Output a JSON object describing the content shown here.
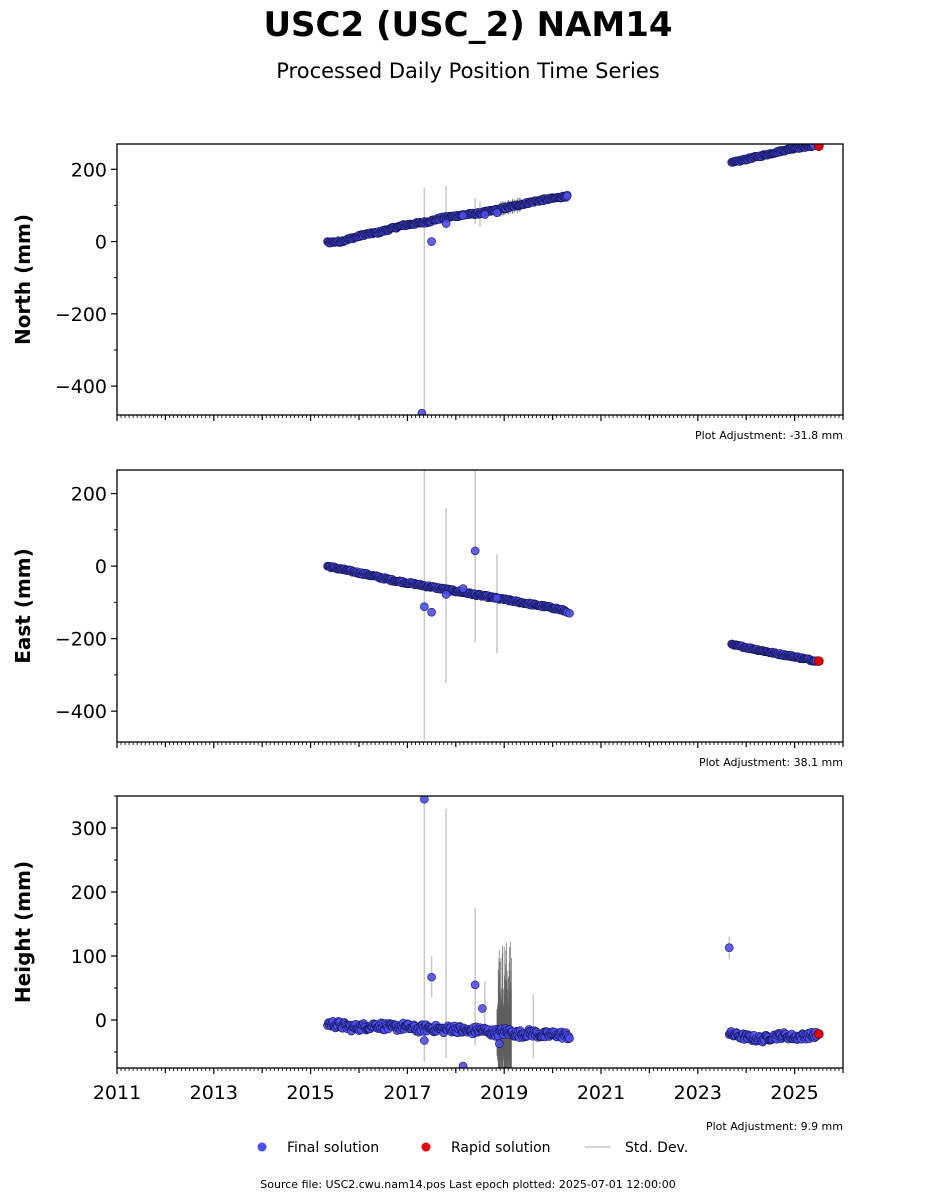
{
  "title": "USC2 (USC_2) NAM14",
  "subtitle": "Processed Daily Position Time Series",
  "source_note": "Source file: USC2.cwu.nam14.pos  Last epoch plotted: 2025-07-01 12:00:00",
  "legend": {
    "final_label": "Final solution",
    "rapid_label": "Rapid solution",
    "std_label": "Std. Dev.",
    "final_color": "#4b4ef0",
    "rapid_color": "#e8000b",
    "std_color": "#c8c8c8"
  },
  "chart_data": {
    "type": "scatter",
    "x_unit": "decimal year",
    "xlim": [
      2011,
      2026
    ],
    "x_ticks": [
      2011,
      2013,
      2015,
      2017,
      2019,
      2021,
      2023,
      2025
    ],
    "x_tick_labels": [
      "2011",
      "2013",
      "2015",
      "2017",
      "2019",
      "2021",
      "2023",
      "2025"
    ],
    "panels": [
      {
        "ylabel": "North (mm)",
        "ylim": [
          -480,
          270
        ],
        "y_ticks": [
          200,
          0,
          -200,
          -400
        ],
        "y_tick_labels": [
          "200",
          "0",
          "−200",
          "−400"
        ],
        "adjustment": "Plot Adjustment: -31.8 mm",
        "segments": [
          {
            "x0": 2015.35,
            "x1": 2020.3,
            "y": [
              -2,
              0,
              10,
              20,
              25,
              35,
              45,
              50,
              55,
              65,
              70,
              75,
              78,
              85,
              92,
              100,
              108,
              115,
              120,
              126
            ],
            "noise": 3
          },
          {
            "x0": 2023.7,
            "x1": 2025.4,
            "y": [
              218,
              225,
              232,
              238,
              245,
              252,
              258,
              262,
              265
            ],
            "noise": 2.5
          }
        ],
        "outliers": [
          [
            2017.3,
            -475
          ],
          [
            2017.5,
            0
          ],
          [
            2017.8,
            50
          ],
          [
            2018.15,
            72
          ],
          [
            2018.6,
            75
          ],
          [
            2018.85,
            80
          ],
          [
            2020.3,
            126
          ]
        ],
        "std_bars": [
          [
            2017.35,
            150,
            -475
          ],
          [
            2017.8,
            155,
            35
          ],
          [
            2018.4,
            120,
            50
          ],
          [
            2018.5,
            110,
            40
          ]
        ],
        "dense_std": [
          {
            "x0": 2018.9,
            "x1": 2019.35,
            "amp": 18
          }
        ],
        "rapid": [
          [
            2025.5,
            264
          ]
        ]
      },
      {
        "ylabel": "East (mm)",
        "ylim": [
          -485,
          265
        ],
        "y_ticks": [
          200,
          0,
          -200,
          -400
        ],
        "y_tick_labels": [
          "200",
          "0",
          "−200",
          "−400"
        ],
        "adjustment": "Plot Adjustment: 38.1 mm",
        "segments": [
          {
            "x0": 2015.35,
            "x1": 2020.3,
            "y": [
              0,
              -8,
              -15,
              -22,
              -30,
              -38,
              -44,
              -50,
              -56,
              -62,
              -68,
              -74,
              -80,
              -86,
              -92,
              -98,
              -104,
              -110,
              -116,
              -125
            ],
            "noise": 3
          },
          {
            "x0": 2023.7,
            "x1": 2025.45,
            "y": [
              -217,
              -222,
              -228,
              -234,
              -240,
              -245,
              -250,
              -256,
              -262
            ],
            "noise": 2.5
          }
        ],
        "outliers": [
          [
            2017.35,
            -112
          ],
          [
            2017.5,
            -127
          ],
          [
            2017.8,
            -78
          ],
          [
            2018.15,
            -62
          ],
          [
            2018.4,
            42
          ],
          [
            2018.85,
            -88
          ],
          [
            2020.35,
            -130
          ]
        ],
        "std_bars": [
          [
            2017.35,
            265,
            -480
          ],
          [
            2017.8,
            162,
            -322
          ],
          [
            2018.4,
            265,
            -210
          ],
          [
            2018.85,
            32,
            -240
          ]
        ],
        "dense_std": [],
        "rapid": [
          [
            2025.5,
            -262
          ]
        ]
      },
      {
        "ylabel": "Height (mm)",
        "ylim": [
          -75,
          350
        ],
        "y_ticks": [
          300,
          200,
          100,
          0
        ],
        "y_tick_labels": [
          "300",
          "200",
          "100",
          "0"
        ],
        "adjustment": "Plot Adjustment: 9.9 mm",
        "segments": [
          {
            "x0": 2015.35,
            "x1": 2020.35,
            "y": [
              -5,
              -8,
              -12,
              -10,
              -8,
              -12,
              -10,
              -14,
              -12,
              -15,
              -13,
              -18,
              -15,
              -20,
              -18,
              -22,
              -20,
              -24,
              -22,
              -25
            ],
            "noise": 6
          },
          {
            "x0": 2023.65,
            "x1": 2025.45,
            "y": [
              -22,
              -25,
              -28,
              -30,
              -26,
              -24,
              -27,
              -25,
              -23
            ],
            "noise": 5
          }
        ],
        "outliers": [
          [
            2017.35,
            345
          ],
          [
            2017.5,
            67
          ],
          [
            2018.4,
            55
          ],
          [
            2018.55,
            18
          ],
          [
            2017.35,
            -32
          ],
          [
            2018.15,
            -72
          ],
          [
            2018.9,
            -37
          ],
          [
            2023.65,
            113
          ]
        ],
        "std_bars": [
          [
            2017.35,
            345,
            -65
          ],
          [
            2017.5,
            100,
            35
          ],
          [
            2017.8,
            330,
            -60
          ],
          [
            2018.4,
            175,
            -40
          ],
          [
            2018.6,
            60,
            -25
          ],
          [
            2019.6,
            40,
            -60
          ],
          [
            2023.65,
            130,
            95
          ]
        ],
        "dense_std": [
          {
            "x0": 2018.85,
            "x1": 2019.15,
            "amp": 120
          }
        ],
        "rapid": [
          [
            2025.5,
            -22
          ]
        ]
      }
    ]
  }
}
